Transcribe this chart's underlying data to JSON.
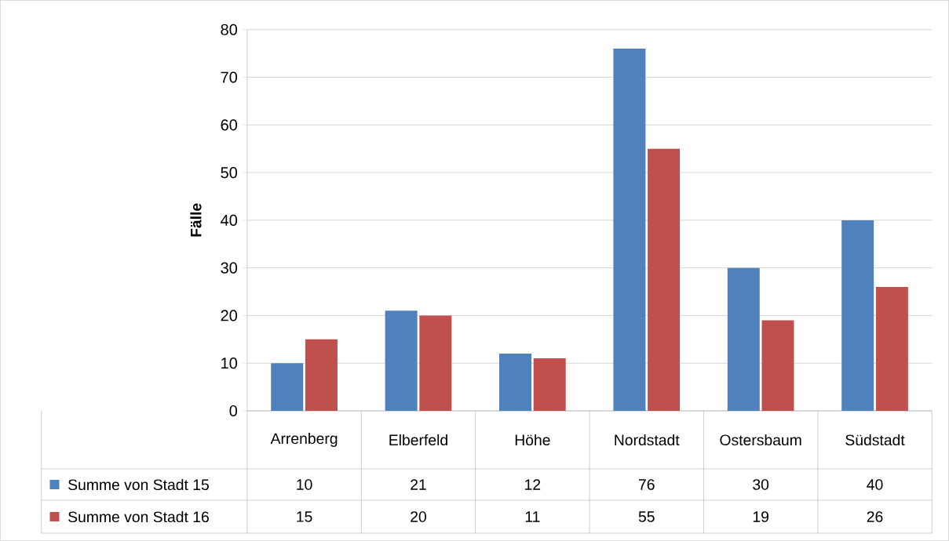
{
  "chart_data": {
    "type": "bar",
    "ylabel": "Fälle",
    "categories": [
      "Arrenberg",
      "Elberfeld",
      "Höhe",
      "Nordstadt",
      "Ostersbaum",
      "Südstadt"
    ],
    "series": [
      {
        "name": "Summe von Stadt 15",
        "color": "#4f81bd",
        "values": [
          10,
          21,
          12,
          76,
          30,
          40
        ]
      },
      {
        "name": "Summe von Stadt 16",
        "color": "#c0504d",
        "values": [
          15,
          20,
          11,
          55,
          19,
          26
        ]
      }
    ],
    "ylim": [
      0,
      80
    ],
    "yticks": [
      0,
      10,
      20,
      30,
      40,
      50,
      60,
      70,
      80
    ],
    "grid": "y",
    "legend": "bottom",
    "data_labels": true
  }
}
